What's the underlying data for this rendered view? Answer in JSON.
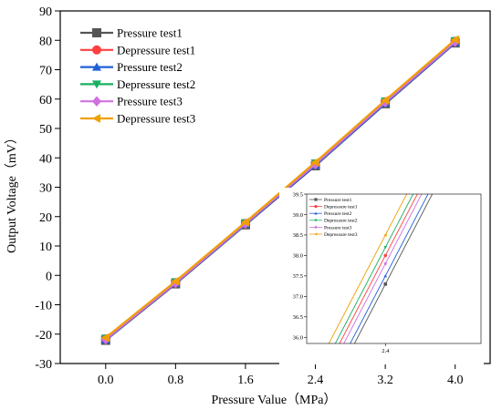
{
  "chart_data": [
    {
      "type": "line",
      "title": "",
      "xlabel": "Pressure Value（MPa）",
      "ylabel": "Output Voltage（mV）",
      "x": [
        0.0,
        0.8,
        1.6,
        2.4,
        3.2,
        4.0
      ],
      "x_tick_labels": [
        "0.0",
        "0.8",
        "1.6",
        "2.4",
        "3.2",
        "4.0"
      ],
      "xlim": [
        -0.52,
        4.4
      ],
      "ylim": [
        -30,
        90
      ],
      "y_ticks": [
        -30,
        -20,
        -10,
        0,
        10,
        20,
        30,
        40,
        50,
        60,
        70,
        80,
        90
      ],
      "grid": false,
      "legend_position": "top-left",
      "series": [
        {
          "name": "Pressure test1",
          "color": "#555555",
          "marker": "square",
          "values": [
            -22.1,
            -2.9,
            17.2,
            37.3,
            58.4,
            79.1
          ]
        },
        {
          "name": "Depressure test1",
          "color": "#ff4040",
          "marker": "circle",
          "values": [
            -21.6,
            -2.5,
            17.7,
            38.0,
            59.1,
            79.7
          ]
        },
        {
          "name": "Pressure test2",
          "color": "#1f5fd8",
          "marker": "triangle-up",
          "values": [
            -21.9,
            -2.7,
            17.4,
            37.5,
            58.6,
            79.3
          ]
        },
        {
          "name": "Depressure test2",
          "color": "#18b060",
          "marker": "triangle-down",
          "values": [
            -21.4,
            -2.2,
            17.9,
            38.2,
            59.3,
            79.9
          ]
        },
        {
          "name": "Pressure test3",
          "color": "#d070e0",
          "marker": "diamond",
          "values": [
            -21.8,
            -2.6,
            17.6,
            37.8,
            58.9,
            79.5
          ]
        },
        {
          "name": "Depressure test3",
          "color": "#f0a000",
          "marker": "triangle-left",
          "values": [
            -21.2,
            -2.0,
            18.1,
            38.5,
            59.6,
            80.2
          ]
        }
      ]
    },
    {
      "type": "line",
      "title": "",
      "x_tick_labels": [
        "2.4"
      ],
      "xlim": [
        2.26,
        2.57
      ],
      "ylim": [
        35.85,
        39.5
      ],
      "y_ticks": [
        36.0,
        36.5,
        37.0,
        37.5,
        38.0,
        38.5,
        39.0,
        39.5
      ],
      "y_tick_labels": [
        "36.0",
        "36.5",
        "37.0",
        "37.5",
        "38.0",
        "38.5",
        "39.0",
        "39.5"
      ],
      "legend_position": "top-left",
      "series": [
        {
          "name": "Pressure test1",
          "color": "#555555",
          "marker": "square"
        },
        {
          "name": "Depressure test1",
          "color": "#ff4040",
          "marker": "circle"
        },
        {
          "name": "Pressure test2",
          "color": "#1f5fd8",
          "marker": "triangle-up"
        },
        {
          "name": "Depressure test2",
          "color": "#18b060",
          "marker": "triangle-down"
        },
        {
          "name": "Pressure test3",
          "color": "#d070e0",
          "marker": "diamond"
        },
        {
          "name": "Depressure test3",
          "color": "#f0a000",
          "marker": "triangle-left"
        }
      ]
    }
  ]
}
